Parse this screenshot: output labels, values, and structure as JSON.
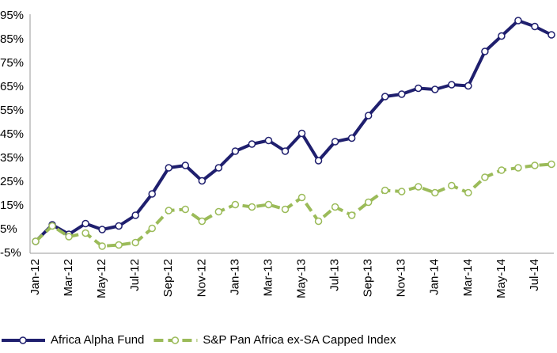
{
  "chart_data": {
    "type": "line",
    "categories": [
      "Jan-12",
      null,
      "Mar-12",
      null,
      "May-12",
      null,
      "Jul-12",
      null,
      "Sep-12",
      null,
      "Nov-12",
      null,
      "Jan-13",
      null,
      "Mar-13",
      null,
      "May-13",
      null,
      "Jul-13",
      null,
      "Sep-13",
      null,
      "Nov-13",
      null,
      "Jan-14",
      null,
      "Mar-14",
      null,
      "May-14",
      null,
      "Jul-14",
      null
    ],
    "series": [
      {
        "name": "Africa Alpha Fund",
        "color": "#1f1f6e",
        "values": [
          0,
          7,
          3,
          7.5,
          5,
          6.5,
          11,
          20,
          31,
          32,
          25.5,
          31,
          38,
          41,
          42.5,
          38,
          45.5,
          34,
          42,
          43.5,
          53,
          61,
          62,
          64.5,
          64,
          66,
          65.5,
          80,
          86.5,
          93,
          90.5,
          87
        ]
      },
      {
        "name": "S&P Pan Africa ex-SA Capped Index",
        "color": "#9bbb59",
        "dashed": true,
        "values": [
          0,
          6.5,
          2,
          3.5,
          -2,
          -1.5,
          -0.5,
          5.5,
          13,
          13.5,
          8.5,
          12.5,
          15.5,
          14.5,
          15.5,
          13.5,
          18.5,
          8.5,
          14.5,
          11,
          16.5,
          21.5,
          21,
          23,
          20.5,
          23.5,
          20.5,
          27,
          30,
          31,
          32,
          32.5
        ]
      }
    ],
    "ylim": [
      -5,
      95
    ],
    "yticks": [
      {
        "value": -5,
        "label": "-5%"
      },
      {
        "value": 5,
        "label": "5%"
      },
      {
        "value": 15,
        "label": "15%"
      },
      {
        "value": 25,
        "label": "25%"
      },
      {
        "value": 35,
        "label": "35%"
      },
      {
        "value": 45,
        "label": "45%"
      },
      {
        "value": 55,
        "label": "55%"
      },
      {
        "value": 65,
        "label": "65%"
      },
      {
        "value": 75,
        "label": "75%"
      },
      {
        "value": 85,
        "label": "85%"
      },
      {
        "value": 95,
        "label": "95%"
      }
    ],
    "grid": false,
    "legend": "bottom"
  }
}
